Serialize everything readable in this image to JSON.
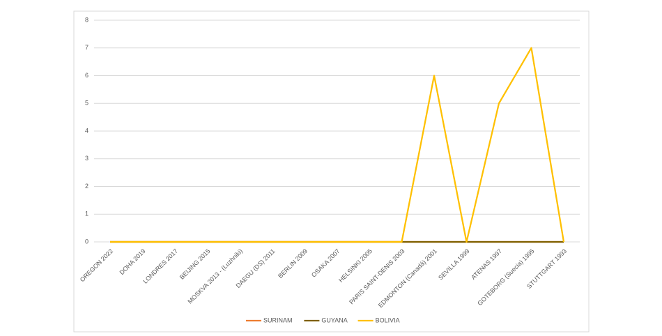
{
  "chart_data": {
    "type": "line",
    "categories": [
      "OREGON 2022",
      "DOHA 2019",
      "LONDRES 2017",
      "BEIJING 2015",
      "MOSKVA 2013 - (Luzhniki)",
      "DAEGU (DS) 2011",
      "BERLIN 2009",
      "OSAKA 2007",
      "HELSINKI 2005",
      "PARIS SAINT-DENIS 2003",
      "EDMONTON (Canadá) 2001",
      "SEVILLA 1999",
      "ATENAS 1997",
      "GOTEBORG (Suecia) 1995",
      "STUTTGART 1993"
    ],
    "series": [
      {
        "name": "SURINAM",
        "color": "#ed7d31",
        "values": [
          0,
          0,
          0,
          0,
          0,
          0,
          0,
          0,
          0,
          0,
          0,
          0,
          0,
          0,
          0
        ]
      },
      {
        "name": "GUYANA",
        "color": "#7f6000",
        "values": [
          0,
          0,
          0,
          0,
          0,
          0,
          0,
          0,
          0,
          0,
          0,
          0,
          0,
          0,
          0
        ]
      },
      {
        "name": "BOLIVIA",
        "color": "#ffc000",
        "values": [
          0,
          0,
          0,
          0,
          0,
          0,
          0,
          0,
          0,
          0,
          6,
          0,
          5,
          7,
          0
        ]
      }
    ],
    "ylim": [
      0,
      8
    ],
    "yticks": [
      0,
      1,
      2,
      3,
      4,
      5,
      6,
      7,
      8
    ],
    "grid": true,
    "legend": "bottom"
  }
}
